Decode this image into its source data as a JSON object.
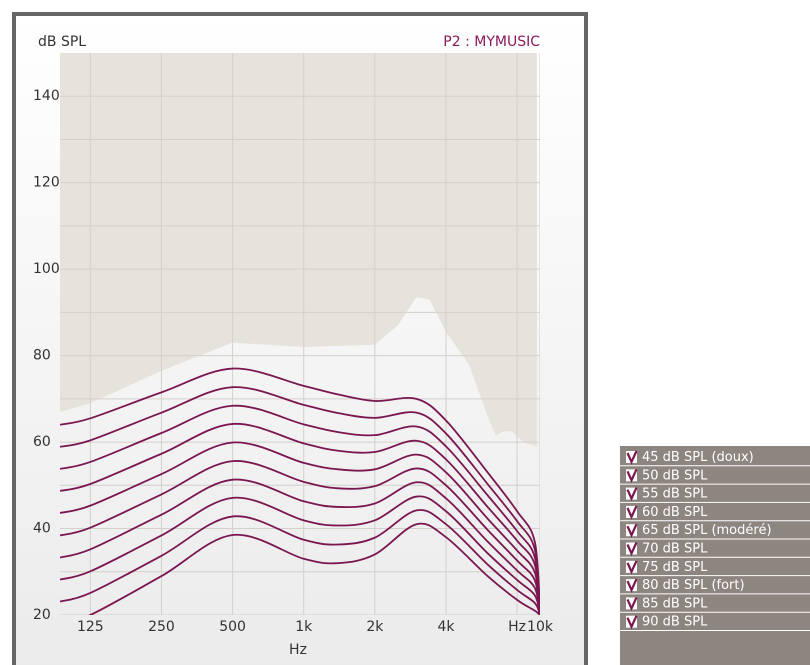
{
  "chart_data": {
    "type": "line",
    "y_axis_label": "dB SPL",
    "program_label": "P2 : MYMUSIC",
    "x_axis_label": "Hz",
    "log_x": true,
    "xlim": [
      93,
      10000
    ],
    "ylim": [
      20,
      150
    ],
    "xticks": [
      125,
      250,
      500,
      {
        "value": 1000,
        "label": "1k"
      },
      {
        "value": 2000,
        "label": "2k"
      },
      {
        "value": 4000,
        "label": "4k"
      },
      {
        "value": 8000,
        "label": "Hz"
      },
      {
        "value": 10000,
        "label": "10k"
      }
    ],
    "yticks": [
      20,
      40,
      60,
      80,
      100,
      120,
      140
    ],
    "y_minor_ticks": [
      30,
      50,
      70,
      90,
      110,
      130
    ],
    "grid": true,
    "shaded_region": {
      "color": "#e6e2dc",
      "x": [
        93,
        125,
        250,
        500,
        700,
        1000,
        2000,
        2500,
        3000,
        3400,
        4000,
        5000,
        6000,
        6500,
        7000,
        7600,
        8500,
        9700
      ],
      "values": [
        67,
        69,
        76.5,
        83,
        82.5,
        82,
        82.5,
        87,
        93.5,
        93,
        85.5,
        78,
        66,
        61.5,
        62.5,
        62.5,
        60,
        59
      ]
    },
    "x": [
      93,
      125,
      250,
      500,
      1000,
      1400,
      2000,
      3000,
      4000,
      6000,
      8000,
      9500,
      10000
    ],
    "series": [
      {
        "name": "45 dB SPL (doux)",
        "color": "#7a1650",
        "values": [
          18,
          20,
          29,
          38.5,
          33,
          32,
          34,
          41,
          38,
          29,
          23.5,
          21,
          20
        ]
      },
      {
        "name": "50 dB SPL",
        "color": "#7a1650",
        "values": [
          23.1,
          25.1,
          33.7,
          42.8,
          37.4,
          36.3,
          37.9,
          44.2,
          41,
          31.7,
          25.8,
          22.8,
          20.1
        ]
      },
      {
        "name": "55 dB SPL",
        "color": "#7a1650",
        "values": [
          28.2,
          30.1,
          38.4,
          47.1,
          41.9,
          40.7,
          41.9,
          47.4,
          44,
          34.3,
          28.1,
          24.6,
          20.2
        ]
      },
      {
        "name": "60 dB SPL",
        "color": "#7a1650",
        "values": [
          33.3,
          35.2,
          43.2,
          51.3,
          46.3,
          45,
          45.8,
          50.7,
          47,
          37,
          30.3,
          26.3,
          20.3
        ]
      },
      {
        "name": "65 dB SPL (modéré)",
        "color": "#7a1650",
        "values": [
          38.4,
          40.2,
          47.9,
          55.6,
          50.8,
          49.3,
          49.8,
          53.9,
          50,
          39.7,
          32.6,
          28.1,
          20.4
        ]
      },
      {
        "name": "70 dB SPL",
        "color": "#7a1650",
        "values": [
          43.6,
          45.3,
          52.6,
          59.9,
          55.2,
          53.7,
          53.7,
          57.1,
          53,
          42.3,
          34.9,
          29.9,
          20.6
        ]
      },
      {
        "name": "75 dB SPL",
        "color": "#7a1650",
        "values": [
          48.7,
          50.3,
          57.3,
          64.2,
          59.7,
          58,
          57.7,
          60.3,
          56,
          45,
          37.2,
          31.7,
          20.7
        ]
      },
      {
        "name": "80 dB SPL (fort)",
        "color": "#7a1650",
        "values": [
          53.8,
          55.4,
          62.1,
          68.4,
          64.1,
          62.3,
          61.6,
          63.6,
          59,
          47.7,
          39.4,
          33.4,
          20.8
        ]
      },
      {
        "name": "85 dB SPL",
        "color": "#7a1650",
        "values": [
          58.9,
          60.4,
          66.8,
          72.7,
          68.6,
          66.7,
          65.6,
          66.8,
          62,
          50.3,
          41.7,
          35.2,
          20.9
        ]
      },
      {
        "name": "90 dB SPL",
        "color": "#7a1650",
        "values": [
          64,
          65.5,
          71.5,
          77,
          73,
          71,
          69.5,
          70,
          65,
          53,
          44,
          37,
          21
        ]
      }
    ]
  }
}
